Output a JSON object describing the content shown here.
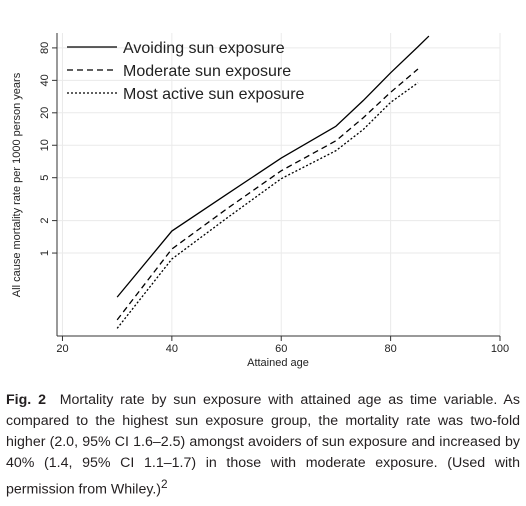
{
  "chart_data": {
    "type": "line",
    "x_label": "Attained age",
    "y_label": "All cause mortality rate per 1000 person years",
    "x": [
      30,
      40,
      50,
      60,
      70,
      75,
      80,
      85,
      87
    ],
    "series": [
      {
        "name": "Avoiding sun exposure",
        "color": "#000000",
        "line_style": "solid",
        "values": [
          0.39,
          1.6,
          3.5,
          7.6,
          15,
          26,
          47,
          82,
          103
        ]
      },
      {
        "name": "Moderate sun exposure",
        "color": "#000000",
        "line_style": "dashed",
        "values": [
          0.24,
          1.09,
          2.56,
          5.8,
          11,
          18,
          31,
          51,
          null
        ]
      },
      {
        "name": "Most active sun exposure",
        "color": "#000000",
        "line_style": "dotted",
        "values": [
          0.2,
          0.88,
          2.1,
          4.9,
          8.9,
          14,
          25,
          38,
          null
        ]
      }
    ],
    "xlim": [
      19,
      100
    ],
    "xticks": [
      20,
      40,
      60,
      80,
      100
    ],
    "ylim": [
      0.17,
      110
    ],
    "yticks": [
      1,
      2,
      5,
      10,
      20,
      40,
      80
    ],
    "y_log": true,
    "grid": true,
    "legend_position": "top-left"
  },
  "caption": {
    "label": "Fig. 2",
    "text": "Mortality rate by sun exposure with attained age as time variable. As compared to the highest sun exposure group, the mortality rate was two-fold higher (2.0, 95% CI 1.6–2.5) amongst avoiders of sun exposure and increased by 40% (1.4, 95% CI 1.1–1.7) in those with moderate exposure. (Used with permission from Whiley.)",
    "superscript": "2"
  }
}
